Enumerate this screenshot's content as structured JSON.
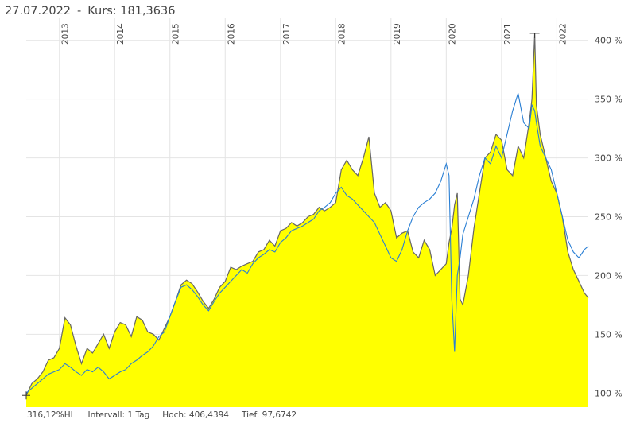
{
  "header": {
    "date": "27.07.2022",
    "separator": "-",
    "kurs_label": "Kurs:",
    "kurs_value": "181,3636"
  },
  "footer": {
    "range": "316,12%HL",
    "interval": "Intervall: 1 Tag",
    "high": "Hoch: 406,4394",
    "low": "Tief: 97,6742"
  },
  "colors": {
    "area_fill": "#ffff00",
    "area_line": "#666666",
    "benchmark_line": "#2a7fd4",
    "grid": "#e4e4e4",
    "axis_text": "#444444"
  },
  "chart_data": {
    "type": "area",
    "x_axis": {
      "ticks": [
        "2013",
        "2014",
        "2015",
        "2016",
        "2017",
        "2018",
        "2019",
        "2020",
        "2021",
        "2022"
      ],
      "range": [
        2012.4,
        2022.57
      ],
      "tick_orientation": "vertical",
      "position": "top"
    },
    "y_axis": {
      "ticks": [
        "100 %",
        "150 %",
        "200 %",
        "250 %",
        "300 %",
        "350 %",
        "400 %"
      ],
      "tick_values": [
        100,
        150,
        200,
        250,
        300,
        350,
        400
      ],
      "range": [
        88,
        412
      ],
      "position": "right"
    },
    "grid": true,
    "series": [
      {
        "style": "filled-area",
        "x": [
          2012.4,
          2012.5,
          2012.6,
          2012.7,
          2012.8,
          2012.9,
          2013.0,
          2013.1,
          2013.2,
          2013.3,
          2013.4,
          2013.5,
          2013.6,
          2013.7,
          2013.8,
          2013.9,
          2014.0,
          2014.1,
          2014.2,
          2014.3,
          2014.4,
          2014.5,
          2014.6,
          2014.7,
          2014.8,
          2014.9,
          2015.0,
          2015.1,
          2015.2,
          2015.3,
          2015.4,
          2015.5,
          2015.6,
          2015.7,
          2015.8,
          2015.9,
          2016.0,
          2016.1,
          2016.2,
          2016.3,
          2016.4,
          2016.5,
          2016.6,
          2016.7,
          2016.8,
          2016.9,
          2017.0,
          2017.1,
          2017.2,
          2017.3,
          2017.4,
          2017.5,
          2017.6,
          2017.7,
          2017.8,
          2017.9,
          2018.0,
          2018.1,
          2018.2,
          2018.3,
          2018.4,
          2018.5,
          2018.6,
          2018.7,
          2018.8,
          2018.9,
          2019.0,
          2019.1,
          2019.2,
          2019.3,
          2019.4,
          2019.5,
          2019.6,
          2019.7,
          2019.8,
          2019.9,
          2020.0,
          2020.05,
          2020.1,
          2020.15,
          2020.2,
          2020.25,
          2020.3,
          2020.4,
          2020.5,
          2020.6,
          2020.7,
          2020.8,
          2020.9,
          2021.0,
          2021.1,
          2021.2,
          2021.3,
          2021.4,
          2021.5,
          2021.55,
          2021.6,
          2021.63,
          2021.7,
          2021.8,
          2021.9,
          2022.0,
          2022.1,
          2022.2,
          2022.3,
          2022.4,
          2022.5,
          2022.57
        ],
        "values": [
          98,
          108,
          112,
          118,
          128,
          130,
          138,
          164,
          158,
          140,
          125,
          138,
          134,
          142,
          150,
          138,
          152,
          160,
          158,
          148,
          165,
          162,
          152,
          150,
          145,
          155,
          165,
          178,
          192,
          196,
          193,
          186,
          178,
          172,
          180,
          190,
          195,
          207,
          205,
          208,
          210,
          212,
          220,
          222,
          230,
          225,
          238,
          240,
          245,
          242,
          245,
          250,
          252,
          258,
          255,
          258,
          262,
          290,
          298,
          290,
          285,
          300,
          318,
          270,
          258,
          262,
          255,
          232,
          236,
          238,
          220,
          215,
          230,
          222,
          200,
          205,
          210,
          228,
          240,
          260,
          270,
          180,
          175,
          200,
          240,
          270,
          300,
          305,
          320,
          315,
          290,
          285,
          310,
          300,
          330,
          350,
          406,
          345,
          320,
          300,
          280,
          270,
          250,
          220,
          205,
          195,
          185,
          181
        ]
      },
      {
        "style": "line",
        "x": [
          2012.4,
          2012.5,
          2012.6,
          2012.7,
          2012.8,
          2012.9,
          2013.0,
          2013.1,
          2013.2,
          2013.3,
          2013.4,
          2013.5,
          2013.6,
          2013.7,
          2013.8,
          2013.9,
          2014.0,
          2014.1,
          2014.2,
          2014.3,
          2014.4,
          2014.5,
          2014.6,
          2014.7,
          2014.8,
          2014.9,
          2015.0,
          2015.1,
          2015.2,
          2015.3,
          2015.4,
          2015.5,
          2015.6,
          2015.7,
          2015.8,
          2015.9,
          2016.0,
          2016.1,
          2016.2,
          2016.3,
          2016.4,
          2016.5,
          2016.6,
          2016.7,
          2016.8,
          2016.9,
          2017.0,
          2017.1,
          2017.2,
          2017.3,
          2017.4,
          2017.5,
          2017.6,
          2017.7,
          2017.8,
          2017.9,
          2018.0,
          2018.1,
          2018.2,
          2018.3,
          2018.4,
          2018.5,
          2018.6,
          2018.7,
          2018.8,
          2018.9,
          2019.0,
          2019.1,
          2019.2,
          2019.3,
          2019.4,
          2019.5,
          2019.6,
          2019.7,
          2019.8,
          2019.9,
          2020.0,
          2020.05,
          2020.1,
          2020.15,
          2020.2,
          2020.25,
          2020.3,
          2020.4,
          2020.5,
          2020.6,
          2020.7,
          2020.8,
          2020.9,
          2021.0,
          2021.1,
          2021.2,
          2021.3,
          2021.4,
          2021.5,
          2021.55,
          2021.6,
          2021.63,
          2021.7,
          2021.8,
          2021.9,
          2022.0,
          2022.1,
          2022.2,
          2022.3,
          2022.4,
          2022.5,
          2022.57
        ],
        "values": [
          100,
          104,
          108,
          112,
          116,
          118,
          120,
          125,
          122,
          118,
          115,
          120,
          118,
          122,
          118,
          112,
          115,
          118,
          120,
          125,
          128,
          132,
          135,
          140,
          148,
          152,
          165,
          178,
          190,
          192,
          188,
          182,
          175,
          170,
          178,
          185,
          190,
          195,
          200,
          205,
          202,
          210,
          215,
          218,
          222,
          220,
          228,
          232,
          238,
          240,
          242,
          245,
          248,
          255,
          258,
          262,
          270,
          275,
          268,
          265,
          260,
          255,
          250,
          245,
          235,
          225,
          215,
          212,
          222,
          238,
          250,
          258,
          262,
          265,
          270,
          280,
          295,
          285,
          180,
          135,
          200,
          215,
          235,
          250,
          265,
          285,
          300,
          295,
          310,
          300,
          320,
          340,
          355,
          330,
          325,
          345,
          340,
          330,
          310,
          300,
          290,
          270,
          250,
          230,
          220,
          215,
          222,
          225
        ]
      }
    ]
  }
}
